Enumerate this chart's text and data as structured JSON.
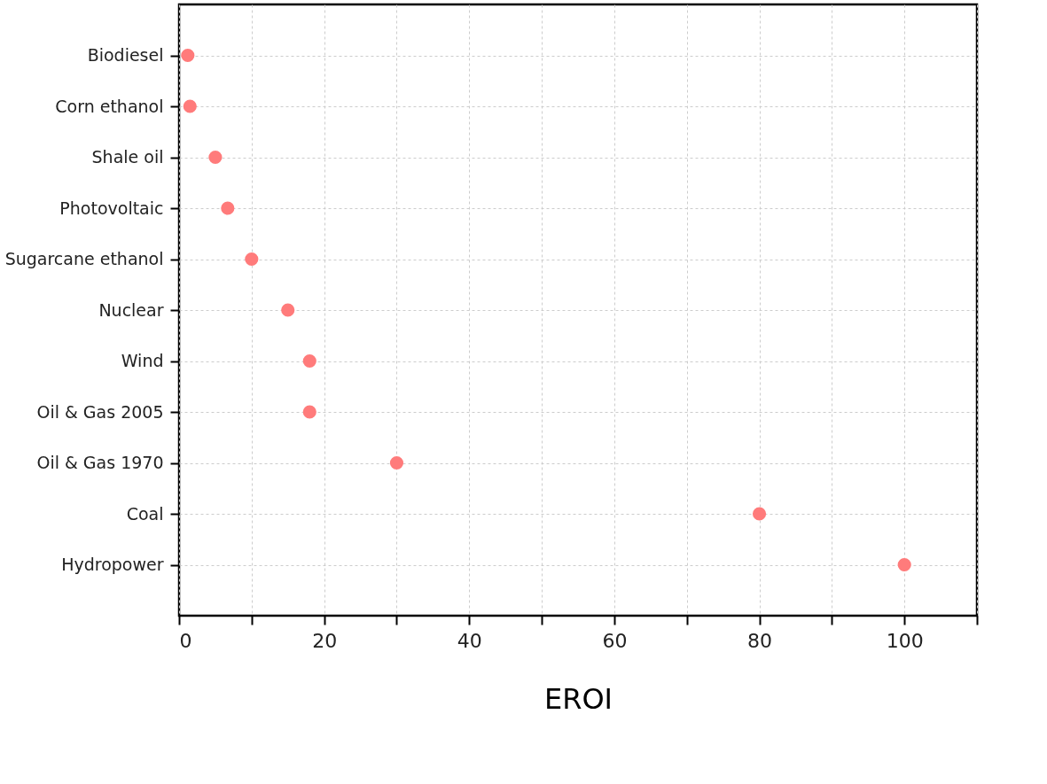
{
  "chart_data": {
    "type": "scatter",
    "xlabel": "EROI",
    "categories": [
      "Biodiesel",
      "Corn ethanol",
      "Shale oil",
      "Photovoltaic",
      "Sugarcane ethanol",
      "Nuclear",
      "Wind",
      "Oil & Gas 2005",
      "Oil & Gas 1970",
      "Coal",
      "Hydropower"
    ],
    "orientation": "horizontal",
    "series": [
      {
        "color": "#ff7b7b",
        "values": [
          1.2,
          1.5,
          5,
          6.7,
          10,
          15,
          18,
          18,
          30,
          80,
          100
        ]
      }
    ],
    "xlim": [
      0,
      110
    ],
    "xticks": [
      0,
      {
        "value": 10,
        "label": null
      },
      20,
      {
        "value": 30,
        "label": null
      },
      40,
      {
        "value": 50,
        "label": null
      },
      60,
      {
        "value": 70,
        "label": null
      },
      80,
      {
        "value": 90,
        "label": null
      },
      100,
      {
        "value": 110,
        "label": null
      }
    ],
    "grid": true,
    "marker": "circle"
  }
}
